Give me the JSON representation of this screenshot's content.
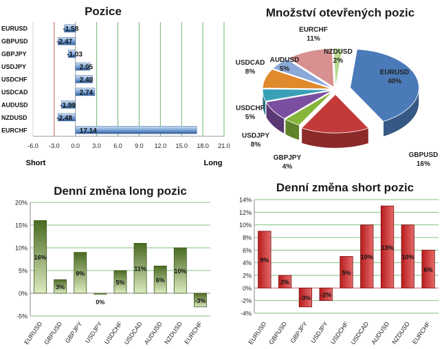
{
  "chart_data": [
    {
      "id": "positions",
      "type": "bar",
      "orientation": "horizontal",
      "title": "Pozice",
      "categories": [
        "EURUSD",
        "GBPUSD",
        "GBPJPY",
        "USDJPY",
        "USDCHF",
        "USDCAD",
        "AUDUSD",
        "NZDUSD",
        "EURCHF"
      ],
      "values": [
        -1.58,
        -2.47,
        -1.03,
        2.05,
        2.4,
        2.74,
        -1.99,
        -2.48,
        17.14
      ],
      "value_labels": [
        "-1.58",
        "-2.47",
        "-1.03",
        "2.05",
        "2.40",
        "2.74",
        "-1.99",
        "-2.48",
        "17.14"
      ],
      "xlim": [
        -6,
        21
      ],
      "xticks": [
        "-6.0",
        "-3.0",
        "0.0",
        "3.0",
        "6.0",
        "9.0",
        "12.0",
        "15.0",
        "18.0",
        "21.0"
      ],
      "short_label": "Short",
      "long_label": "Long",
      "short_threshold": -3,
      "long_threshold": 3
    },
    {
      "id": "open-interest",
      "type": "pie",
      "title": "Množství otevřených pozic",
      "categories": [
        "EURUSD",
        "GBPUSD",
        "GBPJPY",
        "USDJPY",
        "USDCHF",
        "USDCAD",
        "AUDUSD",
        "EURCHF",
        "NZDUSD"
      ],
      "values": [
        40,
        16,
        4,
        8,
        5,
        8,
        5,
        11,
        2
      ],
      "value_labels": [
        "40%",
        "16%",
        "4%",
        "8%",
        "5%",
        "8%",
        "5%",
        "11%",
        "2%"
      ],
      "colors": [
        "#4a7ab8",
        "#c33a3a",
        "#86b53a",
        "#7a4fa0",
        "#3aa0b8",
        "#e08a2e",
        "#8aa8d8",
        "#d89090",
        "#b8d890"
      ]
    },
    {
      "id": "daily-long",
      "type": "bar",
      "title": "Denní změna long pozic",
      "categories": [
        "EURUSD",
        "GBPUSD",
        "GBPJPY",
        "USDJPY",
        "USDCHF",
        "USDCAD",
        "AUDUSD",
        "NZDUSD",
        "EURCHF"
      ],
      "values": [
        16,
        3,
        9,
        0,
        5,
        11,
        6,
        10,
        -3
      ],
      "value_labels": [
        "16%",
        "3%",
        "9%",
        "0%",
        "5%",
        "11%",
        "6%",
        "10%",
        "-3%"
      ],
      "ylim": [
        -5,
        20
      ],
      "yticks": [
        "-5%",
        "0%",
        "5%",
        "10%",
        "15%",
        "20%"
      ]
    },
    {
      "id": "daily-short",
      "type": "bar",
      "title": "Denní změna short pozic",
      "categories": [
        "EURUSD",
        "GBPUSD",
        "GBPJPY",
        "USDJPY",
        "USDCHF",
        "USDCAD",
        "AUDUSD",
        "NZDUSD",
        "EURCHF"
      ],
      "values": [
        9,
        2,
        -3,
        -2,
        5,
        10,
        13,
        10,
        6
      ],
      "value_labels": [
        "9%",
        "2%",
        "-3%",
        "-2%",
        "5%",
        "10%",
        "13%",
        "10%",
        "6%"
      ],
      "ylim": [
        -4,
        14
      ],
      "yticks": [
        "-4%",
        "-2%",
        "0%",
        "2%",
        "4%",
        "6%",
        "8%",
        "10%",
        "12%",
        "14%"
      ]
    }
  ]
}
